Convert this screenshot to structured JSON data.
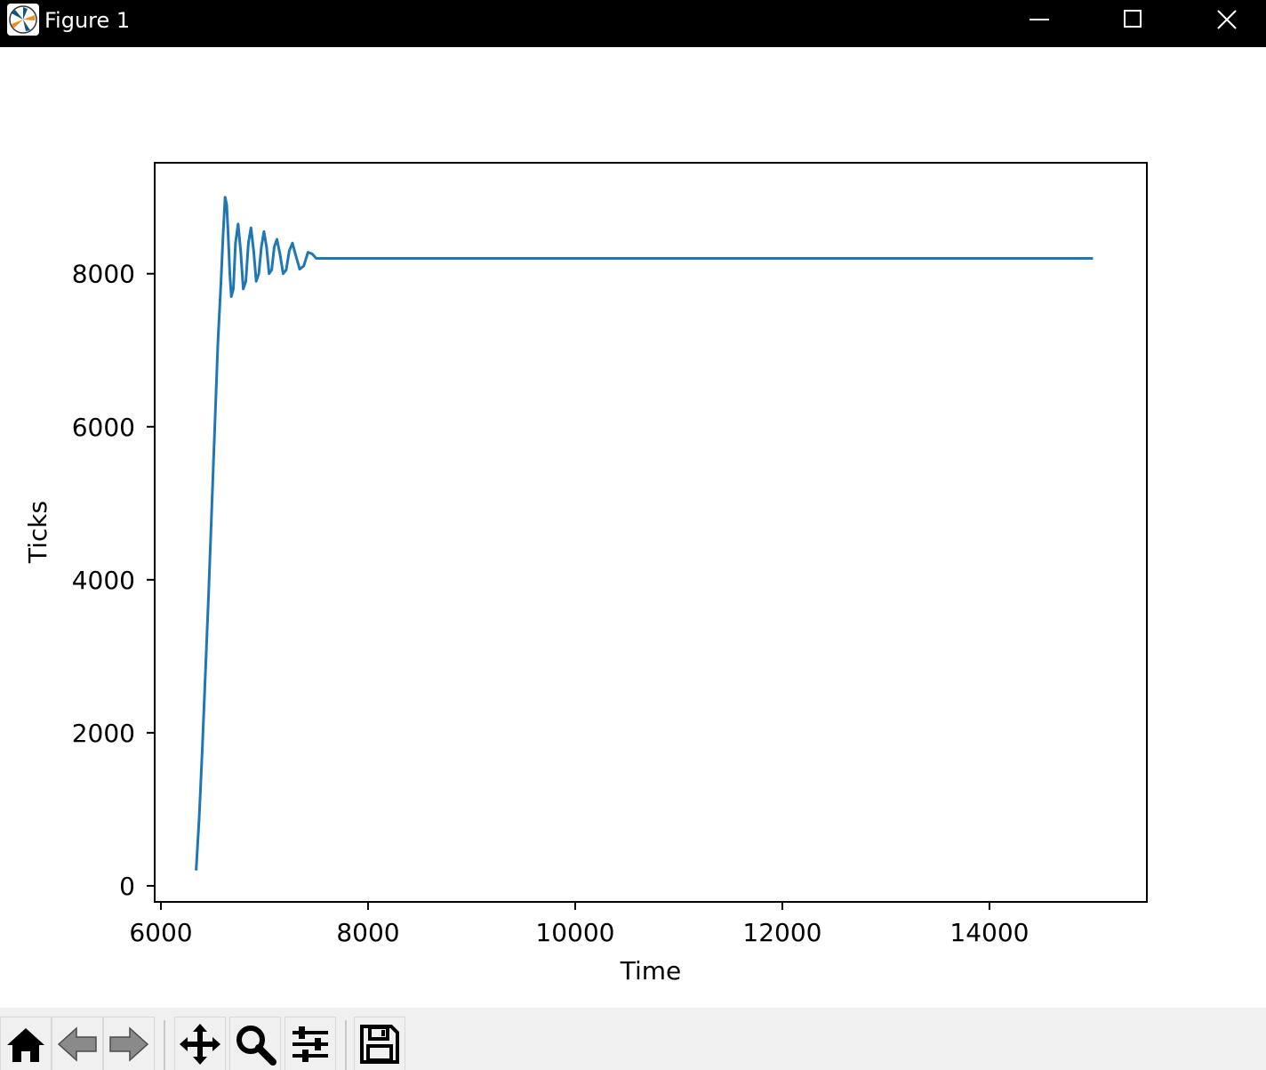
{
  "window": {
    "title": "Figure 1",
    "icon": "matplotlib-logo-icon",
    "controls": [
      "minimize-icon",
      "maximize-icon",
      "close-icon"
    ]
  },
  "toolbar": {
    "buttons": [
      "home-icon",
      "back-arrow-icon",
      "forward-arrow-icon",
      "pan-icon",
      "zoom-magnifier-icon",
      "subplots-sliders-icon",
      "save-floppy-icon"
    ]
  },
  "chart_data": {
    "type": "line",
    "title": "",
    "xlabel": "Time",
    "ylabel": "Ticks",
    "xlim": [
      5940,
      15520
    ],
    "ylim": [
      -210,
      9450
    ],
    "xticks": [
      6000,
      8000,
      10000,
      12000,
      14000
    ],
    "xtick_labels": [
      "6000",
      "8000",
      "10000",
      "12000",
      "14000"
    ],
    "yticks": [
      0,
      2000,
      4000,
      6000,
      8000
    ],
    "ytick_labels": [
      "0",
      "2000",
      "4000",
      "6000",
      "8000"
    ],
    "grid": false,
    "legend": "none",
    "series_color": "#1f77b4",
    "series": [
      {
        "x": [
          6340,
          6370,
          6400,
          6430,
          6460,
          6490,
          6520,
          6550,
          6580,
          6600,
          6620,
          6635,
          6650,
          6665,
          6680,
          6700,
          6720,
          6745,
          6770,
          6795,
          6820,
          6845,
          6870,
          6895,
          6920,
          6945,
          6970,
          6995,
          7020,
          7045,
          7070,
          7095,
          7120,
          7150,
          7180,
          7210,
          7240,
          7270,
          7300,
          7340,
          7380,
          7420,
          7460,
          7500,
          7600,
          8000,
          10000,
          12000,
          14000,
          15000
        ],
        "y": [
          200,
          900,
          1800,
          2800,
          3800,
          4900,
          6000,
          7100,
          7900,
          8500,
          9000,
          8900,
          8500,
          8000,
          7700,
          7800,
          8400,
          8650,
          8300,
          7800,
          7900,
          8400,
          8600,
          8300,
          7900,
          8000,
          8350,
          8550,
          8350,
          8000,
          8050,
          8350,
          8450,
          8250,
          8000,
          8050,
          8300,
          8400,
          8250,
          8060,
          8100,
          8280,
          8260,
          8200,
          8200,
          8200,
          8200,
          8200,
          8200,
          8200
        ]
      }
    ]
  }
}
